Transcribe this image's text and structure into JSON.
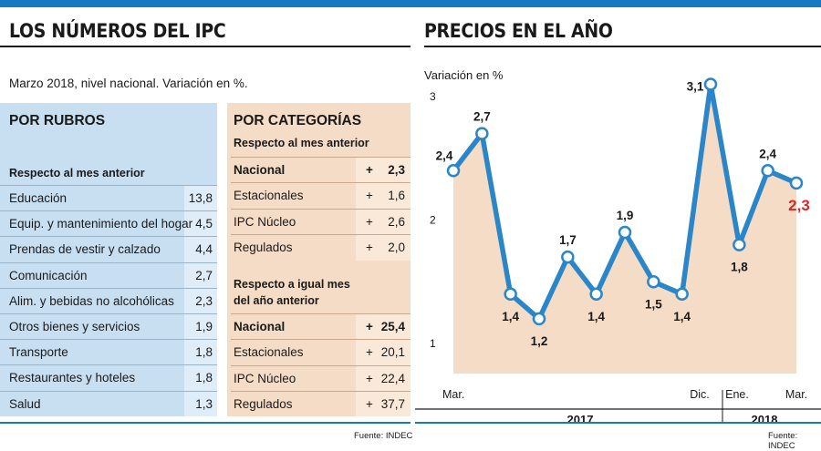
{
  "left": {
    "title": "LOS NÚMEROS DEL IPC",
    "subtitle": "Marzo 2018, nivel nacional. Variación en %.",
    "rubros": {
      "title": "POR RUBROS",
      "subtitle": "Respecto al mes anterior",
      "rows": [
        {
          "label": "Educación",
          "value": "13,8"
        },
        {
          "label": "Equip. y mantenimiento del hogar",
          "value": "4,5"
        },
        {
          "label": "Prendas de vestir y calzado",
          "value": "4,4"
        },
        {
          "label": "Comunicación",
          "value": "2,7"
        },
        {
          "label": "Alim. y bebidas no alcohólicas",
          "value": "2,3"
        },
        {
          "label": "Otros bienes y servicios",
          "value": "1,9"
        },
        {
          "label": "Transporte",
          "value": "1,8"
        },
        {
          "label": "Restaurantes y hoteles",
          "value": "1,8"
        },
        {
          "label": "Salud",
          "value": "1,3"
        }
      ]
    },
    "categorias": {
      "title": "POR CATEGORÍAS",
      "subtitle1": "Respecto al mes anterior",
      "rows1": [
        {
          "label": "Nacional",
          "sign": "+",
          "value": "2,3"
        },
        {
          "label": "Estacionales",
          "sign": "+",
          "value": "1,6"
        },
        {
          "label": "IPC Núcleo",
          "sign": "+",
          "value": "2,6"
        },
        {
          "label": "Regulados",
          "sign": "+",
          "value": "2,0"
        }
      ],
      "subtitle2_line1": "Respecto a igual mes",
      "subtitle2_line2": "del año anterior",
      "rows2": [
        {
          "label": "Nacional",
          "sign": "+",
          "value": "25,4"
        },
        {
          "label": "Estacionales",
          "sign": "+",
          "value": "20,1"
        },
        {
          "label": "IPC Núcleo",
          "sign": "+",
          "value": "22,4"
        },
        {
          "label": "Regulados",
          "sign": "+",
          "value": "37,7"
        }
      ]
    },
    "source": "Fuente: INDEC"
  },
  "right": {
    "title": "PRECIOS EN EL AÑO",
    "source": "Fuente: INDEC"
  },
  "colors": {
    "blue": "#1679c2",
    "line": "#2a86c8",
    "area": "#f5dcc6",
    "highlight": "#d9262b"
  },
  "chart_data": {
    "type": "line",
    "title": "PRECIOS EN EL AÑO",
    "ylabel": "Variación en %",
    "yticks": [
      "1",
      "2",
      "3"
    ],
    "ylim": [
      0.8,
      3.05
    ],
    "x": [
      "Mar. 2017",
      "Abr. 2017",
      "May. 2017",
      "Jun. 2017",
      "Jul. 2017",
      "Ago. 2017",
      "Sep. 2017",
      "Oct. 2017",
      "Nov. 2017",
      "Dic. 2017",
      "Ene. 2018",
      "Feb. 2018",
      "Mar. 2018"
    ],
    "x_tick_labels": [
      "Mar.",
      "Dic.",
      "Ene.",
      "Mar."
    ],
    "year_labels": [
      "2017",
      "2018"
    ],
    "values": [
      2.4,
      2.7,
      1.4,
      1.2,
      1.7,
      1.4,
      1.9,
      1.5,
      1.4,
      3.1,
      1.8,
      2.4,
      2.3
    ],
    "value_labels": [
      "2,4",
      "2,7",
      "1,4",
      "1,2",
      "1,7",
      "1,4",
      "1,9",
      "1,5",
      "1,4",
      "3,1",
      "1,8",
      "2,4",
      "2,3"
    ],
    "highlight_last": true,
    "grid": false
  }
}
